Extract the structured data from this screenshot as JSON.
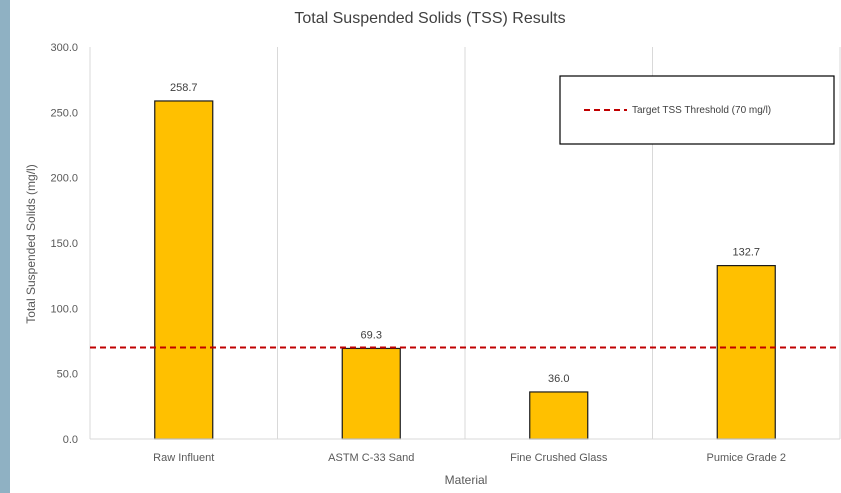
{
  "chart_data": {
    "type": "bar",
    "title": "Total Suspended Solids (TSS) Results",
    "xlabel": "Material",
    "ylabel": "Total Suspended Solids (mg/l)",
    "categories": [
      "Raw Influent",
      "ASTM C-33 Sand",
      "Fine Crushed Glass",
      "Pumice Grade 2"
    ],
    "values": [
      258.7,
      69.3,
      36.0,
      132.7
    ],
    "data_labels": [
      "258.7",
      "69.3",
      "36.0",
      "132.7"
    ],
    "ylim": [
      0,
      300
    ],
    "yticks": [
      0,
      50,
      100,
      150,
      200,
      250,
      300
    ],
    "ytick_labels": [
      "0.0",
      "50.0",
      "100.0",
      "150.0",
      "200.0",
      "250.0",
      "300.0"
    ],
    "threshold": {
      "name": "Target TSS Threshold (70 mg/l)",
      "value": 70
    },
    "legend": {
      "position": "top-right",
      "entries": [
        "Target TSS Threshold (70 mg/l)"
      ]
    },
    "grid": {
      "vertical": true,
      "horizontal": false
    },
    "colors": {
      "bar": "#ffc000",
      "bar_edge": "#1a1a1a",
      "threshold": "#c00000",
      "grid": "#d9d9d9"
    }
  }
}
